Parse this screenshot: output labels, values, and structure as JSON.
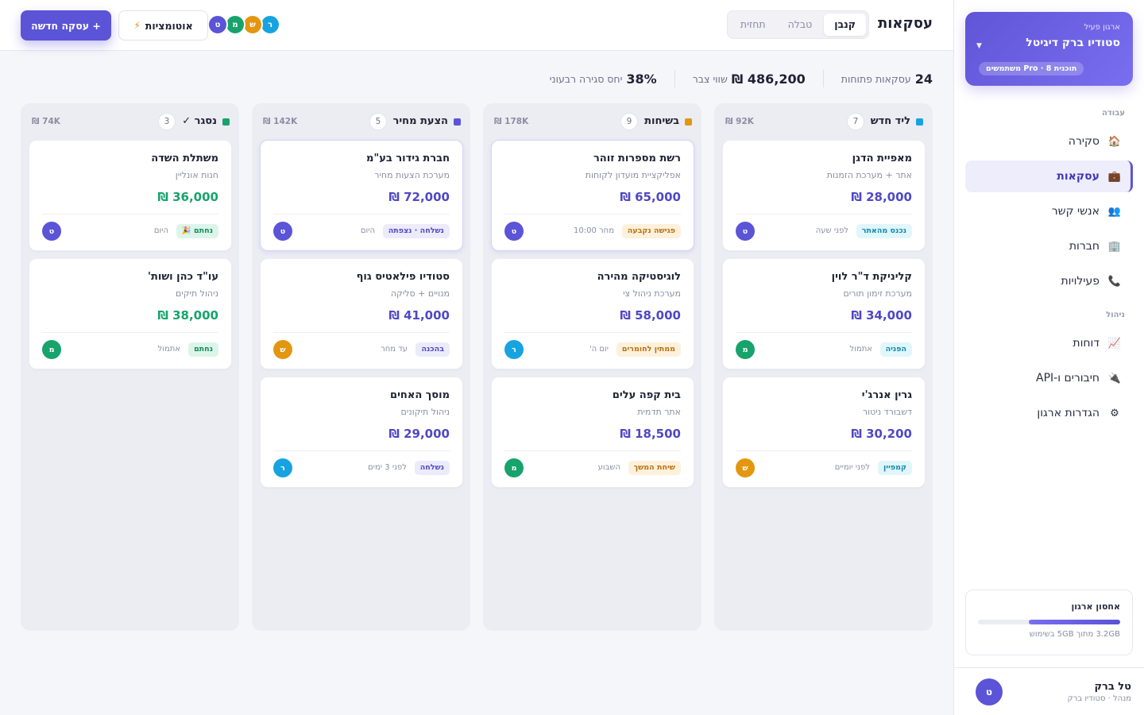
{
  "sidebar": {
    "org": {
      "label": "ארגון פעיל",
      "name": "סטודיו ברק דיגיטל",
      "plan": "תוכנית Pro · 8 משתמשים"
    },
    "sections": [
      "עבודה",
      "ניהול"
    ],
    "items": [
      {
        "label": "סקירה",
        "icon": "house-icon",
        "glyph": "🏠",
        "active": false
      },
      {
        "label": "עסקאות",
        "icon": "briefcase-icon",
        "glyph": "💼",
        "active": true
      },
      {
        "label": "אנשי קשר",
        "icon": "people-icon",
        "glyph": "👥",
        "active": false
      },
      {
        "label": "חברות",
        "icon": "building-icon",
        "glyph": "🏢",
        "active": false
      },
      {
        "label": "פעילויות",
        "icon": "phone-icon",
        "glyph": "📞",
        "active": false
      },
      {
        "label": "דוחות",
        "icon": "chart-icon",
        "glyph": "📈",
        "active": false
      },
      {
        "label": "חיבורים ו-API",
        "icon": "plug-icon",
        "glyph": "🔌",
        "active": false
      },
      {
        "label": "הגדרות ארגון",
        "icon": "gear-icon",
        "glyph": "⚙",
        "active": false
      }
    ],
    "storage": {
      "title": "אחסון ארגון",
      "used_fraction": 0.64,
      "text": "3.2GB מתוך 5GB בשימוש"
    },
    "user": {
      "initial": "ט",
      "name": "טל ברק",
      "role": "מנהל · סטודיו ברק"
    }
  },
  "topbar": {
    "title": "עסקאות",
    "tabs": [
      {
        "label": "קנבן",
        "active": true
      },
      {
        "label": "טבלה",
        "active": false
      },
      {
        "label": "תחזית",
        "active": false
      }
    ],
    "new_deal": "+ עסקה חדשה",
    "automations": "אוטומציות",
    "avatars": [
      {
        "initial": "ט",
        "color": "#5b54d6"
      },
      {
        "initial": "מ",
        "color": "#17a36b"
      },
      {
        "initial": "ש",
        "color": "#e3960f"
      },
      {
        "initial": "ר",
        "color": "#17a3e0"
      }
    ]
  },
  "stats": [
    {
      "value": "24",
      "label": "עסקאות פתוחות"
    },
    {
      "value": "486,200 ₪",
      "label": "שווי צבר"
    },
    {
      "value": "38%",
      "label": "יחס סגירה רבעוני"
    }
  ],
  "columns": [
    {
      "title": "ליד חדש",
      "dot": "#17a3e0",
      "count": "7",
      "sum": "92K ₪",
      "cards": [
        {
          "name": "מאפיית הדגן",
          "sub": "אתר + מערכת הזמנות",
          "amount": "28,000 ₪",
          "tag": "נכנס מהאתר",
          "tagClass": "tag-cyan",
          "time": "לפני שעה",
          "avatar": "ט",
          "avColor": "#5b54d6"
        },
        {
          "name": "קליניקת ד\"ר לוין",
          "sub": "מערכת זימון תורים",
          "amount": "34,000 ₪",
          "tag": "הפניה",
          "tagClass": "tag-cyan",
          "time": "אתמול",
          "avatar": "מ",
          "avColor": "#17a36b"
        },
        {
          "name": "גרין אנרג'י",
          "sub": "דשבורד ניטור",
          "amount": "30,200 ₪",
          "tag": "קמפיין",
          "tagClass": "tag-cyan",
          "time": "לפני יומיים",
          "avatar": "ש",
          "avColor": "#e3960f"
        }
      ]
    },
    {
      "title": "בשיחות",
      "dot": "#e3960f",
      "count": "9",
      "sum": "178K ₪",
      "cards": [
        {
          "name": "רשת מספרות זוהר",
          "sub": "אפליקציית מועדון לקוחות",
          "amount": "65,000 ₪",
          "tag": "פגישה נקבעה",
          "tagClass": "tag-amber",
          "time": "מחר 10:00",
          "avatar": "ט",
          "avColor": "#5b54d6",
          "hl": true
        },
        {
          "name": "לוגיסטיקה מהירה",
          "sub": "מערכת ניהול צי",
          "amount": "58,000 ₪",
          "tag": "ממתין לחומרים",
          "tagClass": "tag-amber",
          "time": "יום ה'",
          "avatar": "ר",
          "avColor": "#17a3e0"
        },
        {
          "name": "בית קפה עלים",
          "sub": "אתר תדמית",
          "amount": "18,500 ₪",
          "tag": "שיחת המשך",
          "tagClass": "tag-amber",
          "time": "השבוע",
          "avatar": "מ",
          "avColor": "#17a36b"
        }
      ]
    },
    {
      "title": "הצעת מחיר",
      "dot": "#5b54d6",
      "count": "5",
      "sum": "142K ₪",
      "cards": [
        {
          "name": "חברת גידור בע\"מ",
          "sub": "מערכת הצעות מחיר",
          "amount": "72,000 ₪",
          "tag": "נשלחה · נצפתה",
          "tagClass": "tag-purple",
          "time": "היום",
          "avatar": "ט",
          "avColor": "#5b54d6",
          "hl": true
        },
        {
          "name": "סטודיו פילאטיס גוף",
          "sub": "מנויים + סליקה",
          "amount": "41,000 ₪",
          "tag": "בהכנה",
          "tagClass": "tag-purple",
          "time": "עד מחר",
          "avatar": "ש",
          "avColor": "#e3960f"
        },
        {
          "name": "מוסך האחים",
          "sub": "ניהול תיקונים",
          "amount": "29,000 ₪",
          "tag": "נשלחה",
          "tagClass": "tag-purple",
          "time": "לפני 3 ימים",
          "avatar": "ר",
          "avColor": "#17a3e0"
        }
      ]
    },
    {
      "title": "נסגר ✓",
      "dot": "#17a36b",
      "count": "3",
      "sum": "74K ₪",
      "cards": [
        {
          "name": "משתלת השדה",
          "sub": "חנות אונליין",
          "amount": "36,000 ₪",
          "tag": "נחתם 🎉",
          "tagClass": "tag-green",
          "time": "היום",
          "avatar": "ט",
          "avColor": "#5b54d6",
          "won": true
        },
        {
          "name": "עו\"ד כהן ושות'",
          "sub": "ניהול תיקים",
          "amount": "38,000 ₪",
          "tag": "נחתם",
          "tagClass": "tag-green",
          "time": "אתמול",
          "avatar": "מ",
          "avColor": "#17a36b",
          "won": true
        }
      ]
    }
  ]
}
